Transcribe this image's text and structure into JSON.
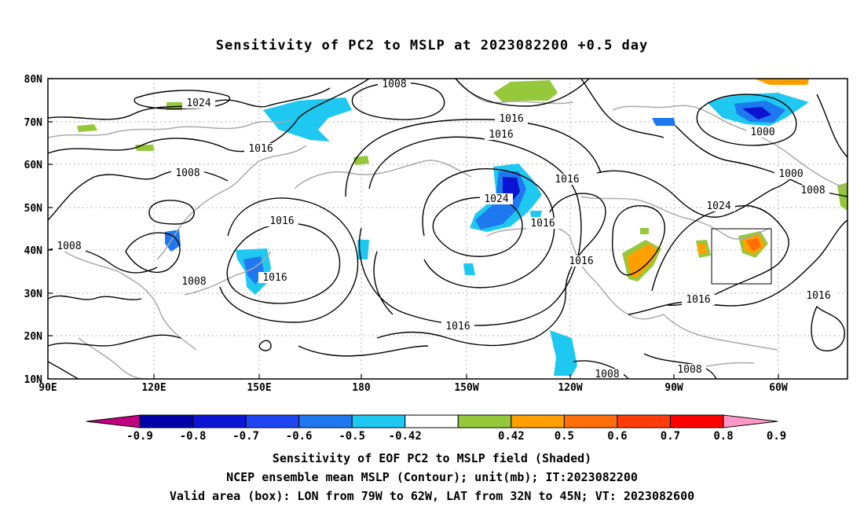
{
  "title": "Sensitivity of PC2 to MSLP at 2023082200 +0.5 day",
  "map": {
    "lon_labels": [
      "90E",
      "120E",
      "150E",
      "180",
      "150W",
      "120W",
      "90W",
      "60W"
    ],
    "lat_labels": [
      "80N",
      "70N",
      "60N",
      "50N",
      "40N",
      "30N",
      "20N",
      "10N"
    ],
    "isobar_labels": [
      "1024",
      "1008",
      "1016",
      "1016",
      "1016",
      "1008",
      "1024",
      "1016",
      "1016",
      "1016",
      "1000",
      "1000",
      "1008",
      "1024",
      "1008",
      "1008",
      "1016",
      "1016",
      "1016",
      "1016",
      "1016",
      "1008",
      "1008",
      "1016",
      "1016"
    ],
    "valid_box": {
      "lon_from": "79W",
      "lon_to": "62W",
      "lat_from": "32N",
      "lat_to": "45N"
    }
  },
  "colorbar": {
    "labels": [
      "-0.9",
      "-0.8",
      "-0.7",
      "-0.6",
      "-0.5",
      "-0.42",
      "0.42",
      "0.5",
      "0.6",
      "0.7",
      "0.8",
      "0.9"
    ],
    "colors": {
      "low_arrow": "#c0007e",
      "bins": [
        "#0000a8",
        "#0a14d2",
        "#1e46f0",
        "#1e78f0",
        "#1ec8f0",
        "#ffffff",
        "#96c83c",
        "#ffa000",
        "#ff6e0a",
        "#ff3c0a",
        "#ff0000"
      ],
      "high_arrow": "#ff96c8"
    }
  },
  "captions": {
    "line1": "Sensitivity of EOF PC2 to MSLP field (Shaded)",
    "line2": "NCEP ensemble mean MSLP (Contour); unit(mb); IT:2023082200",
    "line3": "Valid area (box): LON from 79W to 62W, LAT from 32N to 45N; VT: 2023082600"
  }
}
